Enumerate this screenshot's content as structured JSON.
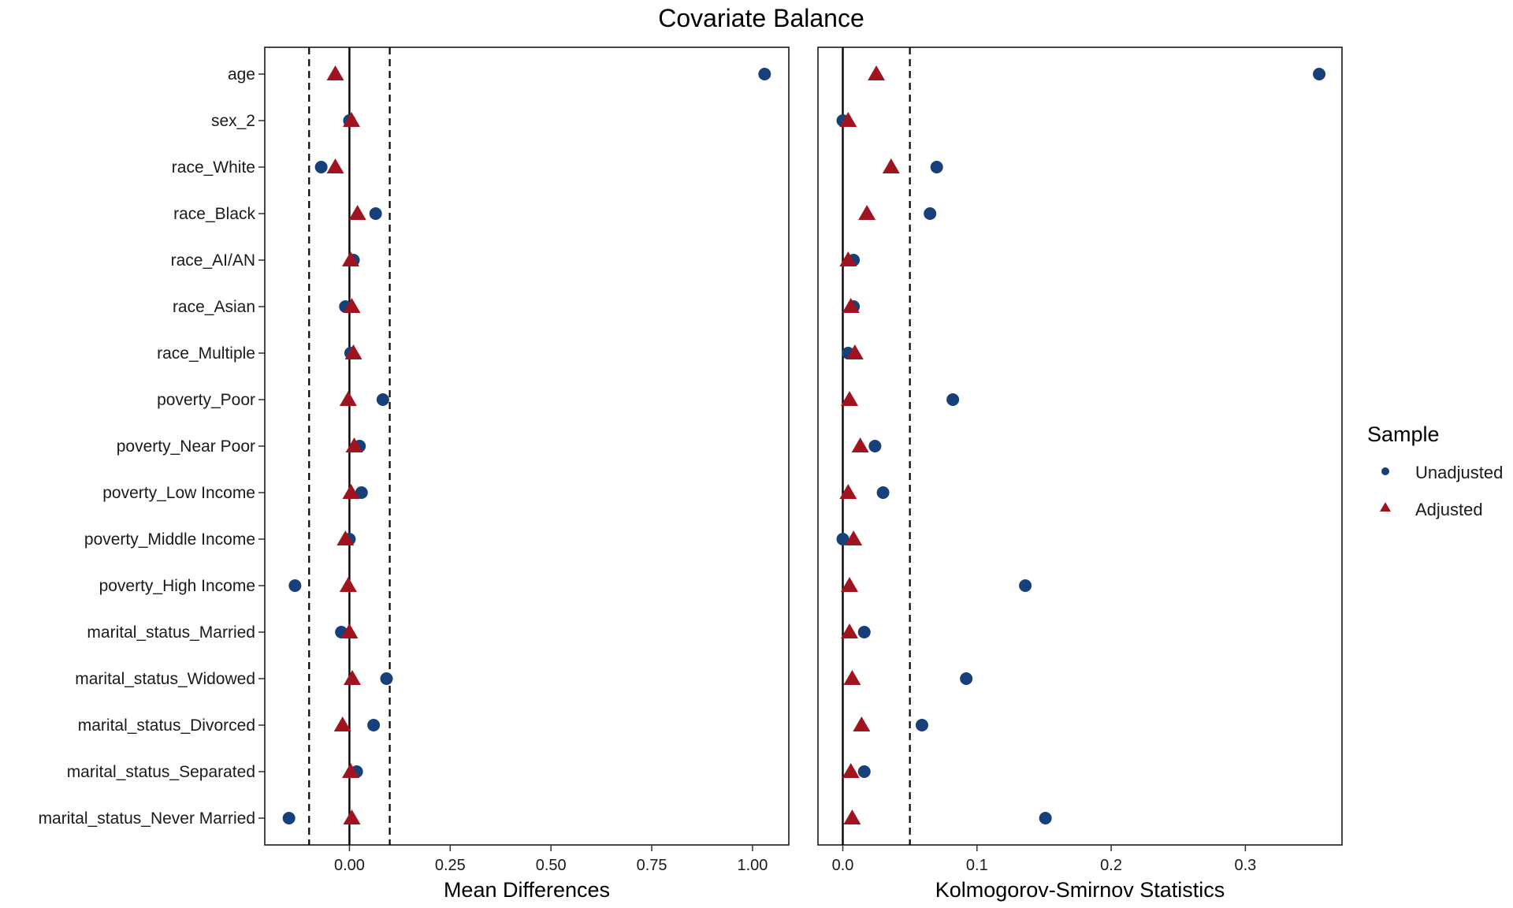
{
  "chart_data": {
    "type": "scatter",
    "title": "Covariate Balance",
    "variables": [
      "age",
      "sex_2",
      "race_White",
      "race_Black",
      "race_AI/AN",
      "race_Asian",
      "race_Multiple",
      "poverty_Poor",
      "poverty_Near Poor",
      "poverty_Low Income",
      "poverty_Middle Income",
      "poverty_High Income",
      "marital_status_Married",
      "marital_status_Widowed",
      "marital_status_Divorced",
      "marital_status_Separated",
      "marital_status_Never Married"
    ],
    "legend": {
      "title": "Sample",
      "position": "right",
      "entries": [
        {
          "name": "Unadjusted",
          "shape": "circle",
          "color": "#173f7a"
        },
        {
          "name": "Adjusted",
          "shape": "triangle",
          "color": "#a0141f"
        }
      ]
    },
    "panels": [
      {
        "xlabel": "Mean Differences",
        "xlim": [
          -0.21,
          1.09
        ],
        "ticks": [
          0.0,
          0.25,
          0.5,
          0.75,
          1.0
        ],
        "tick_labels": [
          "0.00",
          "0.25",
          "0.50",
          "0.75",
          "1.00"
        ],
        "zero_line": 0,
        "thresholds": [
          -0.1,
          0.1
        ],
        "series": [
          {
            "name": "Unadjusted",
            "values": [
              1.03,
              0.0,
              -0.07,
              0.065,
              0.01,
              -0.01,
              0.003,
              0.083,
              0.025,
              0.03,
              0.0,
              -0.135,
              -0.02,
              0.092,
              0.06,
              0.018,
              -0.15
            ]
          },
          {
            "name": "Adjusted",
            "values": [
              -0.035,
              0.005,
              -0.035,
              0.02,
              0.003,
              0.006,
              0.01,
              -0.003,
              0.012,
              0.004,
              -0.01,
              -0.003,
              0.0,
              0.007,
              -0.017,
              0.003,
              0.006
            ]
          }
        ]
      },
      {
        "xlabel": "Kolmogorov-Smirnov Statistics",
        "xlim": [
          -0.0185,
          0.372
        ],
        "ticks": [
          0.0,
          0.1,
          0.2,
          0.3
        ],
        "tick_labels": [
          "0.0",
          "0.1",
          "0.2",
          "0.3"
        ],
        "zero_line": 0,
        "thresholds": [
          0.05
        ],
        "series": [
          {
            "name": "Unadjusted",
            "values": [
              0.355,
              0.0,
              0.07,
              0.065,
              0.008,
              0.008,
              0.004,
              0.082,
              0.024,
              0.03,
              0.0,
              0.136,
              0.016,
              0.092,
              0.059,
              0.016,
              0.151
            ]
          },
          {
            "name": "Adjusted",
            "values": [
              0.025,
              0.004,
              0.036,
              0.018,
              0.004,
              0.006,
              0.009,
              0.005,
              0.013,
              0.004,
              0.008,
              0.005,
              0.005,
              0.007,
              0.014,
              0.006,
              0.007
            ]
          }
        ]
      }
    ]
  }
}
